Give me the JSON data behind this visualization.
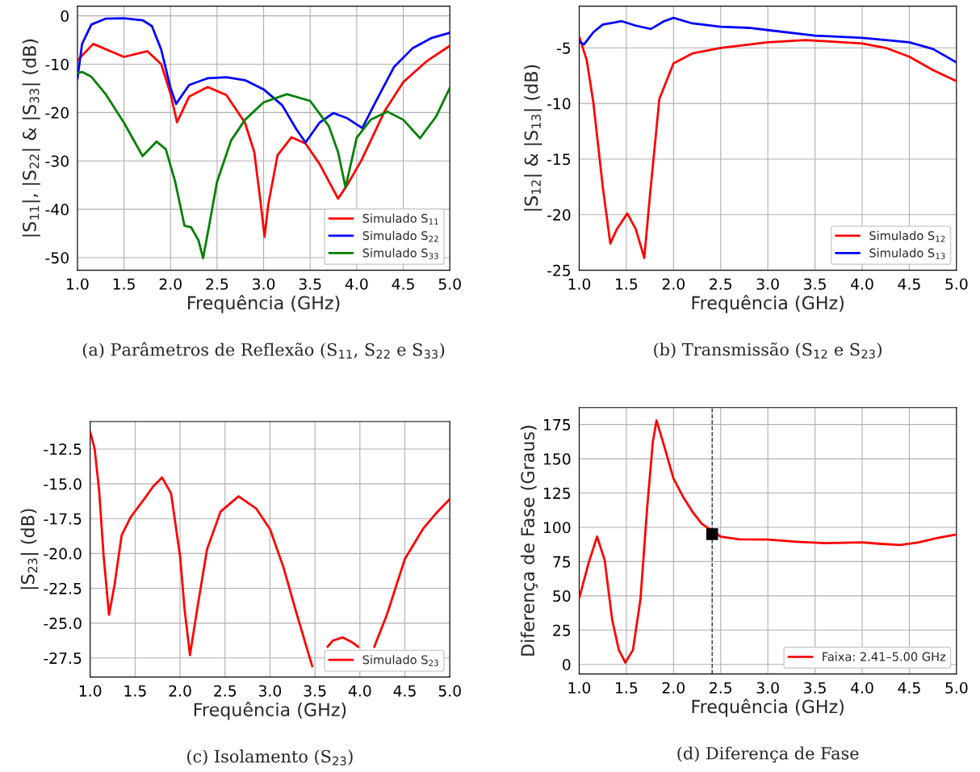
{
  "chart_data": [
    {
      "type": "line",
      "xlabel": "Frequência (GHz)",
      "ylabel": "|S$_{11}$|, |S$_{22}$| & |S$_{33}$| (dB)",
      "annotations": [
        "(a) Parâmetros de Reflexão (S$_{11}$, S$_{22}$ e S$_{33}$)"
      ],
      "xlim": [
        1.0,
        5.0
      ],
      "xticks": [
        {
          "value": 1,
          "label": "1.0"
        },
        1.5,
        {
          "value": 2,
          "label": "2.0"
        },
        2.5,
        {
          "value": 3,
          "label": "3.0"
        },
        3.5,
        {
          "value": 4,
          "label": "4.0"
        },
        4.5,
        {
          "value": 5,
          "label": "5.0"
        }
      ],
      "ylim": [
        -52.6,
        2.0
      ],
      "yticks": [
        0,
        -10,
        -20,
        -30,
        -40,
        -50
      ],
      "grid": true,
      "legend": "bottom right",
      "series": [
        {
          "name": "Simulado S$_{11}$",
          "color": "#ff0000",
          "x": [
            1.0,
            1.17,
            1.5,
            1.75,
            1.9,
            2.0,
            2.07,
            2.2,
            2.4,
            2.6,
            2.8,
            2.9,
            2.97,
            3.01,
            3.05,
            3.15,
            3.3,
            3.45,
            3.6,
            3.8,
            3.9,
            4.05,
            4.3,
            4.5,
            4.75,
            5.0
          ],
          "values": [
            -9.2,
            -5.8,
            -8.5,
            -7.3,
            -10.0,
            -16.1,
            -22.0,
            -16.7,
            -14.7,
            -16.4,
            -22.1,
            -28.2,
            -39.0,
            -45.7,
            -39.0,
            -28.8,
            -25.1,
            -26.4,
            -30.6,
            -37.8,
            -34.9,
            -29.9,
            -19.7,
            -13.7,
            -9.4,
            -6.2
          ]
        },
        {
          "name": "Simulado S$_{22}$",
          "color": "#0000ff",
          "x": [
            1.0,
            1.05,
            1.15,
            1.3,
            1.5,
            1.7,
            1.8,
            1.9,
            2.0,
            2.06,
            2.2,
            2.4,
            2.6,
            2.8,
            3.0,
            3.2,
            3.35,
            3.45,
            3.6,
            3.75,
            3.9,
            4.06,
            4.2,
            4.4,
            4.6,
            4.8,
            5.0
          ],
          "values": [
            -13.0,
            -5.8,
            -1.8,
            -0.6,
            -0.5,
            -0.9,
            -2.1,
            -7.0,
            -14.9,
            -18.2,
            -14.3,
            -12.9,
            -12.7,
            -13.3,
            -15.2,
            -18.5,
            -23.4,
            -26.2,
            -22.1,
            -20.1,
            -21.2,
            -23.2,
            -17.9,
            -10.6,
            -6.7,
            -4.6,
            -3.5
          ]
        },
        {
          "name": "Simulado S$_{33}$",
          "color": "#008000",
          "x": [
            1.0,
            1.05,
            1.15,
            1.3,
            1.5,
            1.7,
            1.85,
            1.95,
            2.05,
            2.15,
            2.22,
            2.3,
            2.35,
            2.42,
            2.5,
            2.65,
            2.8,
            3.0,
            3.25,
            3.5,
            3.7,
            3.8,
            3.88,
            4.0,
            4.15,
            4.33,
            4.5,
            4.68,
            4.85,
            5.0
          ],
          "values": [
            -11.8,
            -11.6,
            -12.6,
            -16.1,
            -22.1,
            -29.0,
            -26.0,
            -27.6,
            -34.3,
            -43.4,
            -43.7,
            -46.4,
            -50.1,
            -42.8,
            -34.3,
            -25.8,
            -21.5,
            -17.9,
            -16.2,
            -17.6,
            -22.8,
            -28.2,
            -35.5,
            -25.2,
            -21.5,
            -19.8,
            -21.5,
            -25.3,
            -20.9,
            -14.9
          ]
        }
      ]
    },
    {
      "type": "line",
      "xlabel": "Frequência (GHz)",
      "ylabel": "|S$_{12}$| & |S$_{13}$| (dB)",
      "annotations": [
        "(b) Transmissão (S$_{12}$ e S$_{23}$)"
      ],
      "xlim": [
        1.0,
        5.0
      ],
      "xticks": [
        {
          "value": 1,
          "label": "1.0"
        },
        1.5,
        {
          "value": 2,
          "label": "2.0"
        },
        2.5,
        {
          "value": 3,
          "label": "3.0"
        },
        3.5,
        {
          "value": 4,
          "label": "4.0"
        },
        4.5,
        {
          "value": 5,
          "label": "5.0"
        }
      ],
      "ylim": [
        -25.0,
        -1.25
      ],
      "yticks": [
        -5,
        -10,
        -15,
        -20,
        -25
      ],
      "grid": true,
      "legend": "bottom right",
      "series": [
        {
          "name": "Simulado S$_{12}$",
          "color": "#ff0000",
          "x": [
            1.0,
            1.08,
            1.15,
            1.25,
            1.33,
            1.4,
            1.51,
            1.6,
            1.69,
            1.75,
            1.85,
            2.0,
            2.2,
            2.5,
            3.0,
            3.4,
            4.0,
            4.25,
            4.5,
            4.75,
            5.0
          ],
          "values": [
            -4.0,
            -6.1,
            -9.9,
            -17.5,
            -22.6,
            -21.3,
            -19.9,
            -21.3,
            -23.9,
            -18.3,
            -9.6,
            -6.4,
            -5.5,
            -5.0,
            -4.5,
            -4.3,
            -4.6,
            -5.0,
            -5.8,
            -7.0,
            -8.0
          ]
        },
        {
          "name": "Simulado S$_{13}$",
          "color": "#0000ff",
          "x": [
            1.0,
            1.05,
            1.15,
            1.25,
            1.45,
            1.6,
            1.76,
            1.9,
            2.0,
            2.2,
            2.5,
            2.8,
            3.0,
            3.5,
            4.0,
            4.5,
            4.75,
            5.0
          ],
          "values": [
            -4.4,
            -4.7,
            -3.6,
            -2.9,
            -2.6,
            -3.0,
            -3.3,
            -2.6,
            -2.3,
            -2.8,
            -3.1,
            -3.2,
            -3.4,
            -3.9,
            -4.1,
            -4.5,
            -5.1,
            -6.3
          ]
        }
      ]
    },
    {
      "type": "line",
      "xlabel": "Frequência (GHz)",
      "ylabel": "|S$_{23}$| (dB)",
      "annotations": [
        "(c) Isolamento (S$_{23}$)"
      ],
      "xlim": [
        1.0,
        5.0
      ],
      "xticks": [
        {
          "value": 1,
          "label": "1.0"
        },
        1.5,
        {
          "value": 2,
          "label": "2.0"
        },
        2.5,
        {
          "value": 3,
          "label": "3.0"
        },
        3.5,
        {
          "value": 4,
          "label": "4.0"
        },
        4.5,
        {
          "value": 5,
          "label": "5.0"
        }
      ],
      "ylim": [
        -28.87,
        -10.53
      ],
      "yticks": [
        -12.5,
        {
          "value": -15,
          "label": "-15.0"
        },
        -17.5,
        {
          "value": -20,
          "label": "-20.0"
        },
        -22.5,
        {
          "value": -25,
          "label": "-25.0"
        },
        -27.5
      ],
      "grid": true,
      "legend": "bottom right",
      "series": [
        {
          "name": "Simulado S$_{23}$",
          "color": "#ff0000",
          "x": [
            1.0,
            1.05,
            1.1,
            1.15,
            1.21,
            1.27,
            1.35,
            1.45,
            1.6,
            1.7,
            1.8,
            1.9,
            2.0,
            2.05,
            2.11,
            2.2,
            2.3,
            2.45,
            2.65,
            2.85,
            3.0,
            3.15,
            3.3,
            3.47,
            3.55,
            3.64,
            3.7,
            3.81,
            3.92,
            3.98,
            4.07,
            4.16,
            4.3,
            4.5,
            4.7,
            4.85,
            5.0
          ],
          "values": [
            -11.27,
            -12.5,
            -15.5,
            -20.2,
            -24.4,
            -22.3,
            -18.7,
            -17.4,
            -16.1,
            -15.2,
            -14.55,
            -15.7,
            -20.2,
            -24.0,
            -27.3,
            -23.6,
            -19.7,
            -17.0,
            -15.9,
            -16.8,
            -18.25,
            -21.0,
            -24.4,
            -28.1,
            null,
            -26.7,
            -26.25,
            -26.03,
            -26.4,
            -26.7,
            null,
            -26.7,
            -24.4,
            -20.4,
            -18.25,
            -17.1,
            -16.1
          ]
        }
      ]
    },
    {
      "type": "line",
      "xlabel": "Frequência (GHz)",
      "ylabel": "Diferença de Fase (Graus)",
      "annotations": [
        "(d) Diferença de Fase"
      ],
      "xlim": [
        1.0,
        5.0
      ],
      "xticks": [
        {
          "value": 1,
          "label": "1.0"
        },
        1.5,
        {
          "value": 2,
          "label": "2.0"
        },
        2.5,
        {
          "value": 3,
          "label": "3.0"
        },
        3.5,
        {
          "value": 4,
          "label": "4.0"
        },
        4.5,
        {
          "value": 5,
          "label": "5.0"
        }
      ],
      "ylim": [
        -7.0,
        187.3
      ],
      "yticks": [
        0,
        25,
        50,
        75,
        100,
        125,
        150,
        175
      ],
      "grid": true,
      "legend": "bottom right",
      "ref_lines": [
        {
          "axis": "x",
          "value": 2.41,
          "color": "#333333",
          "line_style": "dashed"
        }
      ],
      "series": [
        {
          "name": "Faixa: 2.41–5.00 GHz",
          "color": "#ff0000",
          "x": [
            1.0,
            1.1,
            1.19,
            1.27,
            1.35,
            1.42,
            1.49,
            1.57,
            1.65,
            1.72,
            1.78,
            1.82,
            1.9,
            2.0,
            2.1,
            2.2,
            2.3,
            2.5,
            2.7,
            3.0,
            3.3,
            3.6,
            4.0,
            4.2,
            4.4,
            4.6,
            4.8,
            5.0
          ],
          "values": [
            48.2,
            74.0,
            93.2,
            76.0,
            32.5,
            10.5,
            1.3,
            10.5,
            47.8,
            113.6,
            161.8,
            177.9,
            159.6,
            135.5,
            122.4,
            111.4,
            102.6,
            93.2,
            91.2,
            91.0,
            89.5,
            88.4,
            89.0,
            87.9,
            87.1,
            89.0,
            92.3,
            94.7
          ]
        },
        {
          "type": "scatter",
          "marker": "square",
          "color": "#000000",
          "x": [
            2.41
          ],
          "values": [
            95.0
          ]
        }
      ]
    }
  ]
}
